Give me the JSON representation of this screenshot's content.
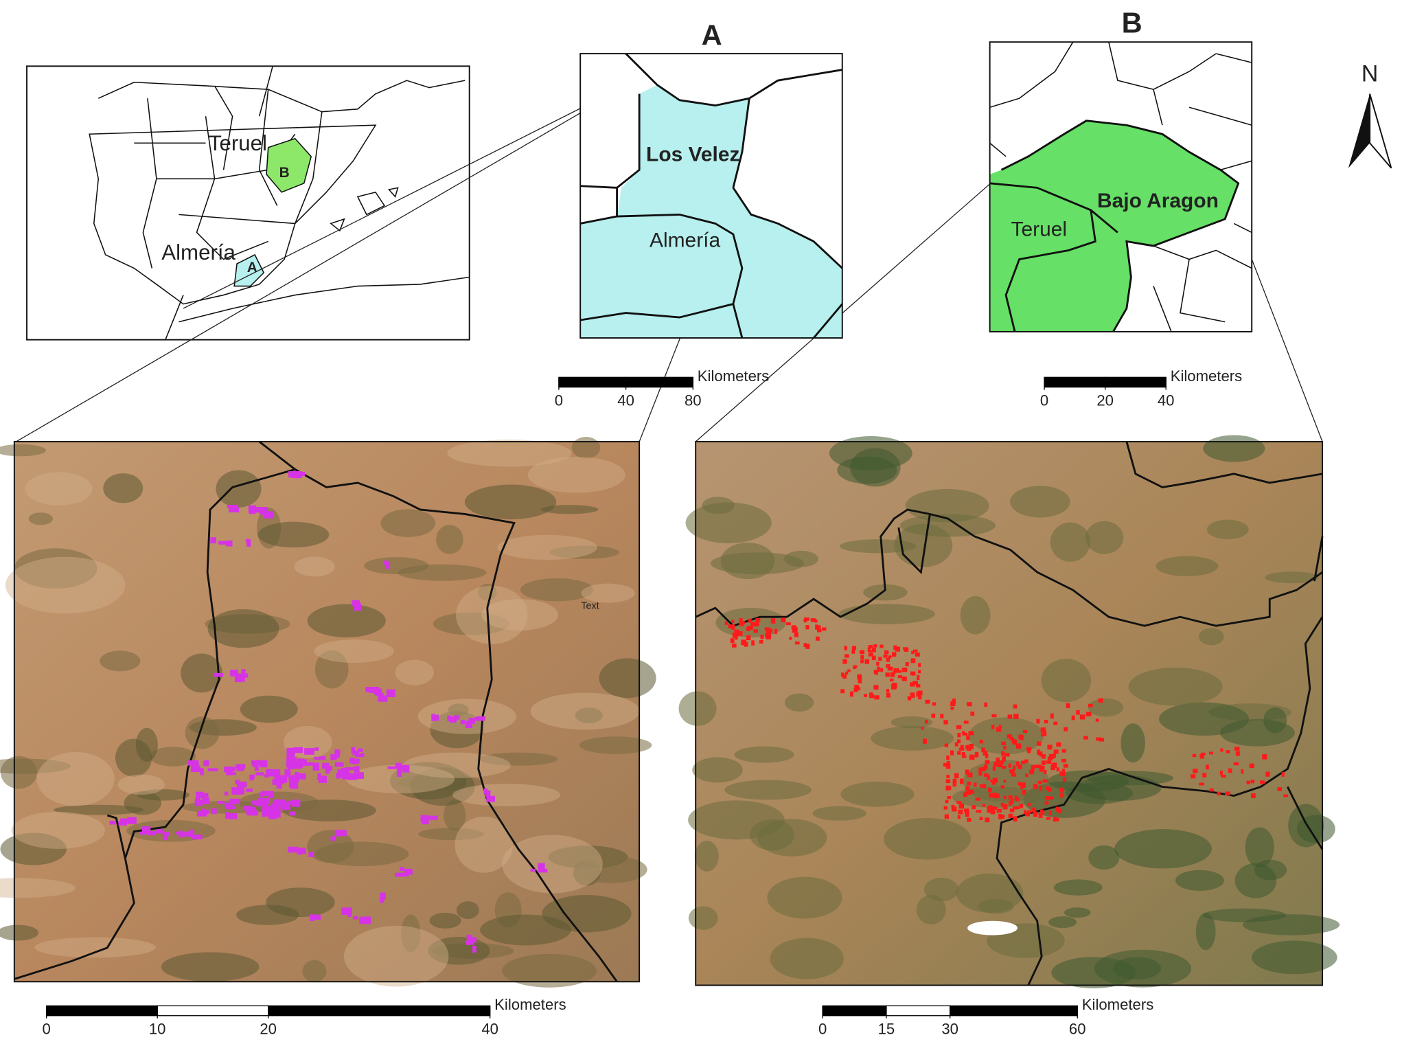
{
  "inset_map": {
    "labels": [
      "Teruel",
      "Almería"
    ],
    "markers": [
      "B",
      "A"
    ]
  },
  "panel_a": {
    "title": "A",
    "labels": [
      "Los Velez",
      "Almería"
    ],
    "scale": {
      "unit": "Kilometers",
      "ticks": [
        0,
        40,
        80
      ]
    }
  },
  "panel_b": {
    "title": "B",
    "labels": [
      "Bajo Aragon",
      "Teruel"
    ],
    "scale": {
      "unit": "Kilometers",
      "ticks": [
        0,
        20,
        40
      ]
    }
  },
  "satellite_a": {
    "label": "Text",
    "scale": {
      "unit": "Kilometers",
      "ticks": [
        0,
        10,
        20,
        40
      ]
    }
  },
  "satellite_b": {
    "scale": {
      "unit": "Kilometers",
      "ticks": [
        0,
        15,
        30,
        60
      ]
    }
  },
  "north_arrow": "N"
}
